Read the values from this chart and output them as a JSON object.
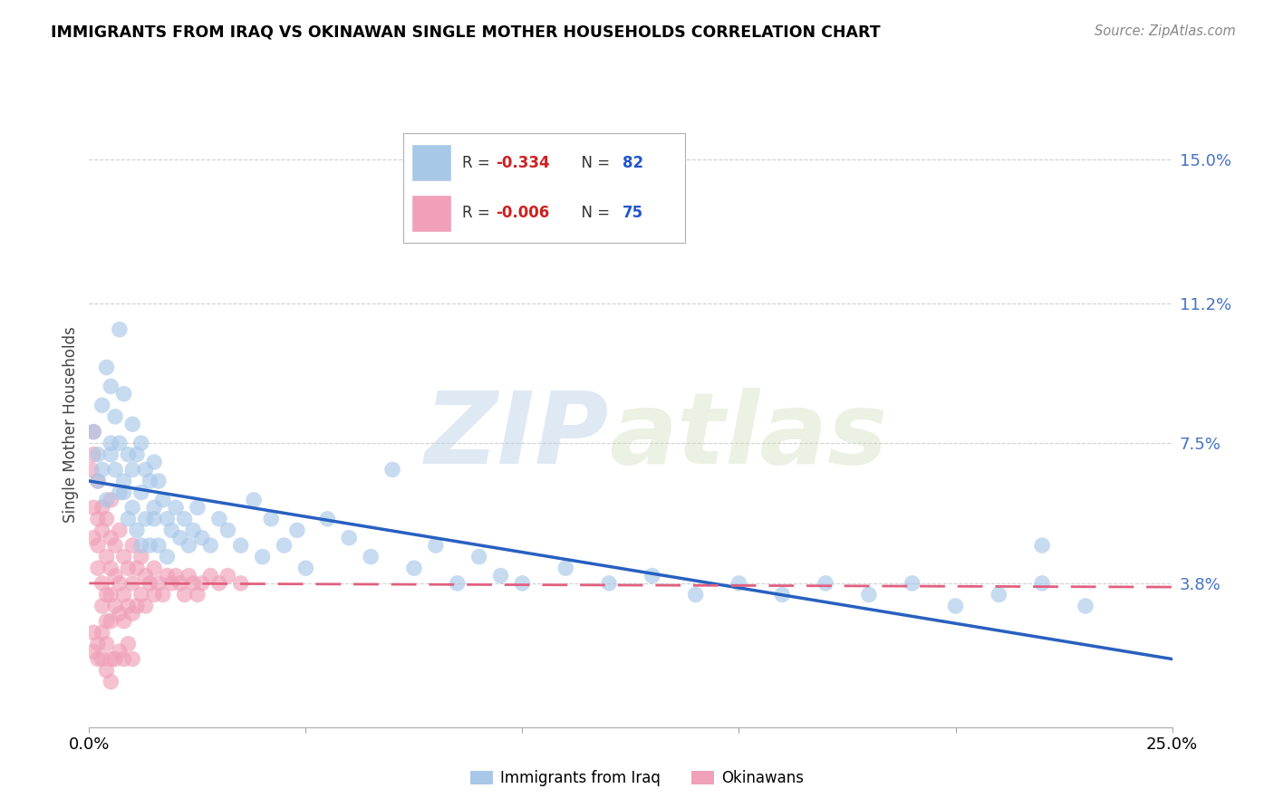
{
  "title": "IMMIGRANTS FROM IRAQ VS OKINAWAN SINGLE MOTHER HOUSEHOLDS CORRELATION CHART",
  "source": "Source: ZipAtlas.com",
  "ylabel": "Single Mother Households",
  "watermark": "ZIPatlas",
  "xmin": 0.0,
  "xmax": 0.25,
  "ymin": 0.0,
  "ymax": 0.16,
  "yticks": [
    0.038,
    0.075,
    0.112,
    0.15
  ],
  "ytick_labels": [
    "3.8%",
    "7.5%",
    "11.2%",
    "15.0%"
  ],
  "xticks": [
    0.0,
    0.05,
    0.1,
    0.15,
    0.2,
    0.25
  ],
  "grid_color": "#d0d0d0",
  "blue_color": "#a8c8e8",
  "pink_color": "#f0a0b8",
  "blue_line_color": "#2860c0",
  "pink_line_color": "#e06080",
  "iraq_R": -0.334,
  "iraq_N": 82,
  "okinawa_R": -0.006,
  "okinawa_N": 75,
  "iraq_scatter_x": [
    0.001,
    0.002,
    0.002,
    0.003,
    0.003,
    0.004,
    0.004,
    0.005,
    0.005,
    0.006,
    0.006,
    0.007,
    0.007,
    0.007,
    0.008,
    0.008,
    0.009,
    0.009,
    0.01,
    0.01,
    0.01,
    0.011,
    0.011,
    0.012,
    0.012,
    0.013,
    0.013,
    0.014,
    0.014,
    0.015,
    0.015,
    0.016,
    0.016,
    0.017,
    0.018,
    0.019,
    0.02,
    0.021,
    0.022,
    0.023,
    0.024,
    0.025,
    0.026,
    0.028,
    0.03,
    0.032,
    0.035,
    0.038,
    0.04,
    0.042,
    0.045,
    0.048,
    0.05,
    0.055,
    0.06,
    0.065,
    0.07,
    0.075,
    0.08,
    0.085,
    0.09,
    0.095,
    0.1,
    0.11,
    0.12,
    0.13,
    0.14,
    0.15,
    0.16,
    0.17,
    0.18,
    0.19,
    0.2,
    0.21,
    0.22,
    0.23,
    0.005,
    0.008,
    0.012,
    0.015,
    0.018,
    0.22
  ],
  "iraq_scatter_y": [
    0.078,
    0.072,
    0.065,
    0.085,
    0.068,
    0.095,
    0.06,
    0.09,
    0.075,
    0.082,
    0.068,
    0.105,
    0.075,
    0.062,
    0.088,
    0.065,
    0.072,
    0.055,
    0.08,
    0.068,
    0.058,
    0.072,
    0.052,
    0.075,
    0.062,
    0.068,
    0.055,
    0.065,
    0.048,
    0.07,
    0.058,
    0.065,
    0.048,
    0.06,
    0.055,
    0.052,
    0.058,
    0.05,
    0.055,
    0.048,
    0.052,
    0.058,
    0.05,
    0.048,
    0.055,
    0.052,
    0.048,
    0.06,
    0.045,
    0.055,
    0.048,
    0.052,
    0.042,
    0.055,
    0.05,
    0.045,
    0.068,
    0.042,
    0.048,
    0.038,
    0.045,
    0.04,
    0.038,
    0.042,
    0.038,
    0.04,
    0.035,
    0.038,
    0.035,
    0.038,
    0.035,
    0.038,
    0.032,
    0.035,
    0.038,
    0.032,
    0.072,
    0.062,
    0.048,
    0.055,
    0.045,
    0.048
  ],
  "okinawa_scatter_x": [
    0.0005,
    0.001,
    0.001,
    0.001,
    0.001,
    0.002,
    0.002,
    0.002,
    0.002,
    0.003,
    0.003,
    0.003,
    0.003,
    0.004,
    0.004,
    0.004,
    0.004,
    0.005,
    0.005,
    0.005,
    0.005,
    0.005,
    0.006,
    0.006,
    0.006,
    0.007,
    0.007,
    0.007,
    0.008,
    0.008,
    0.008,
    0.009,
    0.009,
    0.01,
    0.01,
    0.01,
    0.011,
    0.011,
    0.012,
    0.012,
    0.013,
    0.013,
    0.014,
    0.015,
    0.015,
    0.016,
    0.017,
    0.018,
    0.019,
    0.02,
    0.021,
    0.022,
    0.023,
    0.024,
    0.025,
    0.026,
    0.028,
    0.03,
    0.032,
    0.035,
    0.001,
    0.001,
    0.002,
    0.002,
    0.003,
    0.003,
    0.004,
    0.004,
    0.005,
    0.005,
    0.006,
    0.007,
    0.008,
    0.009,
    0.01
  ],
  "okinawa_scatter_y": [
    0.068,
    0.078,
    0.058,
    0.072,
    0.05,
    0.065,
    0.055,
    0.048,
    0.042,
    0.058,
    0.052,
    0.038,
    0.032,
    0.055,
    0.045,
    0.035,
    0.028,
    0.06,
    0.05,
    0.042,
    0.035,
    0.028,
    0.048,
    0.04,
    0.032,
    0.052,
    0.038,
    0.03,
    0.045,
    0.035,
    0.028,
    0.042,
    0.032,
    0.048,
    0.038,
    0.03,
    0.042,
    0.032,
    0.045,
    0.035,
    0.04,
    0.032,
    0.038,
    0.042,
    0.035,
    0.038,
    0.035,
    0.04,
    0.038,
    0.04,
    0.038,
    0.035,
    0.04,
    0.038,
    0.035,
    0.038,
    0.04,
    0.038,
    0.04,
    0.038,
    0.025,
    0.02,
    0.022,
    0.018,
    0.025,
    0.018,
    0.022,
    0.015,
    0.018,
    0.012,
    0.018,
    0.02,
    0.018,
    0.022,
    0.018
  ],
  "iraq_line_x": [
    0.0,
    0.25
  ],
  "iraq_line_y": [
    0.065,
    0.018
  ],
  "okinawa_line_x": [
    0.0,
    0.25
  ],
  "okinawa_line_y": [
    0.038,
    0.037
  ]
}
